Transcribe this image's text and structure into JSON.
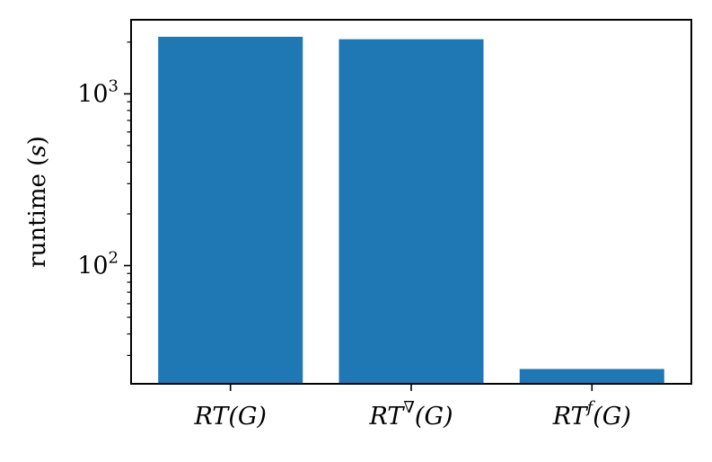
{
  "chart_data": {
    "type": "bar",
    "categories": [
      {
        "base": "RT",
        "sup": "",
        "arg": "(G)"
      },
      {
        "base": "RT",
        "sup": "∇",
        "arg": "(G)"
      },
      {
        "base": "RT",
        "sup": "f",
        "arg": "(G)"
      }
    ],
    "values": [
      2150,
      2080,
      25
    ],
    "title": "",
    "xlabel": "",
    "ylabel": {
      "text": "runtime ",
      "open": "(",
      "var": "s",
      "close": ")"
    },
    "yscale": "log",
    "ylim": [
      20.5,
      2700
    ],
    "yticks_major": [
      {
        "value": 100,
        "base": "10",
        "exp": "2"
      },
      {
        "value": 1000,
        "base": "10",
        "exp": "3"
      }
    ],
    "bar_color": "#1f77b4",
    "grid": false,
    "legend": "none"
  }
}
